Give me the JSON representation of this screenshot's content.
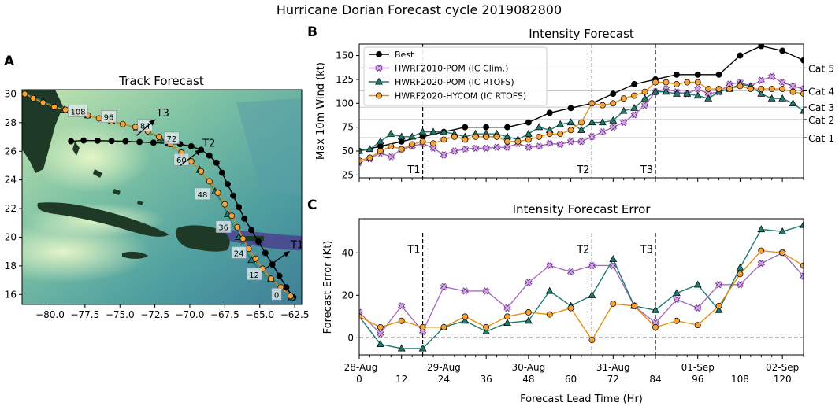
{
  "suptitle": "Hurricane Dorian Forecast cycle 2019082800",
  "panels": {
    "a": "A",
    "b": "B",
    "c": "C"
  },
  "colors": {
    "best": "#000000",
    "pom2010": "#a05ab8",
    "pom2020": "#1f7a6e",
    "hycom": "#f29e26"
  },
  "chart_data": [
    {
      "type": "scatter",
      "title": "Track Forecast",
      "xlim": [
        -82.0,
        -62.0
      ],
      "ylim": [
        15.3,
        30.3
      ],
      "xticks": [
        -80.0,
        -77.5,
        -75.0,
        -72.5,
        -70.0,
        -67.5,
        -65.0,
        -62.5
      ],
      "xtick_labels": [
        "−80.0",
        "−77.5",
        "−75.0",
        "−72.5",
        "−70.0",
        "−67.5",
        "−65.0",
        "−62.5"
      ],
      "yticks": [
        16,
        18,
        20,
        22,
        24,
        26,
        28,
        30
      ],
      "series": [
        {
          "name": "Best",
          "lon": [
            -62.6,
            -63.1,
            -63.6,
            -64.1,
            -64.6,
            -65.1,
            -65.6,
            -66.1,
            -66.5,
            -66.9,
            -67.3,
            -67.7,
            -68.1,
            -68.6,
            -69.2,
            -69.9,
            -70.7,
            -71.6,
            -72.6,
            -73.6,
            -74.6,
            -75.6,
            -76.6,
            -77.6,
            -78.5
          ],
          "lat": [
            15.8,
            16.5,
            17.3,
            18.1,
            18.9,
            19.7,
            20.5,
            21.3,
            22.1,
            22.9,
            23.7,
            24.5,
            25.2,
            25.7,
            26.1,
            26.35,
            26.5,
            26.55,
            26.6,
            26.65,
            26.7,
            26.72,
            26.74,
            26.75,
            26.7
          ]
        },
        {
          "name": "HWRF2020-POM (IC RTOFS)",
          "lon": [
            -62.7,
            -63.4,
            -64.2,
            -65.0,
            -65.6,
            -66.1,
            -66.5,
            -66.9,
            -67.3,
            -67.7,
            -68.2,
            -68.7,
            -69.3,
            -69.9,
            -70.6,
            -71.3,
            -72.1,
            -72.9,
            -73.8,
            -74.7,
            -75.6,
            -76.5,
            -77.3,
            -78.1,
            -79.0,
            -79.8,
            -80.5,
            -81.2,
            -81.9
          ],
          "lat": [
            15.8,
            16.5,
            17.1,
            17.7,
            18.4,
            19.2,
            20.0,
            20.8,
            21.6,
            22.4,
            23.2,
            24.0,
            24.7,
            25.3,
            25.9,
            26.4,
            26.9,
            27.3,
            27.6,
            27.9,
            28.1,
            28.3,
            28.5,
            28.7,
            28.9,
            29.2,
            29.5,
            29.8,
            30.1
          ]
        },
        {
          "name": "HWRF2020-HYCOM (IC RTOFS)",
          "lon": [
            -62.8,
            -63.5,
            -64.2,
            -64.8,
            -65.3,
            -65.8,
            -66.2,
            -66.6,
            -67.0,
            -67.5,
            -68.0,
            -68.6,
            -69.2,
            -69.9,
            -70.6,
            -71.4,
            -72.2,
            -73.0,
            -73.9,
            -74.8,
            -75.6,
            -76.5,
            -77.3,
            -78.1,
            -78.9,
            -79.7,
            -80.5,
            -81.2,
            -81.8
          ],
          "lat": [
            15.9,
            16.5,
            17.1,
            17.8,
            18.5,
            19.2,
            19.9,
            20.7,
            21.5,
            22.3,
            23.1,
            23.9,
            24.6,
            25.3,
            25.9,
            26.5,
            27.0,
            27.4,
            27.7,
            27.9,
            28.1,
            28.3,
            28.5,
            28.7,
            28.9,
            29.1,
            29.4,
            29.7,
            30.0
          ]
        }
      ],
      "hour_labels": [
        {
          "label": "0",
          "lon": -63.8,
          "lat": 16.0
        },
        {
          "label": "12",
          "lon": -65.4,
          "lat": 17.4
        },
        {
          "label": "24",
          "lon": -66.5,
          "lat": 18.9
        },
        {
          "label": "36",
          "lon": -67.6,
          "lat": 20.7
        },
        {
          "label": "48",
          "lon": -69.1,
          "lat": 23.0
        },
        {
          "label": "60",
          "lon": -70.6,
          "lat": 25.4
        },
        {
          "label": "72",
          "lon": -71.3,
          "lat": 26.9
        },
        {
          "label": "84",
          "lon": -73.2,
          "lat": 27.8
        },
        {
          "label": "96",
          "lon": -75.8,
          "lat": 28.4
        },
        {
          "label": "108",
          "lon": -78.0,
          "lat": 28.8
        }
      ],
      "time_markers": [
        {
          "label": "T1",
          "lon": -62.9,
          "lat": 19.0,
          "lon_from": -64.6,
          "lat_from": 17.8
        },
        {
          "label": "T2",
          "lon": -69.2,
          "lat": 26.1,
          "lon_from": -70.7,
          "lat_from": 25.0
        },
        {
          "label": "T3",
          "lon": -72.5,
          "lat": 28.2,
          "lon_from": -73.8,
          "lat_from": 27.1
        }
      ]
    },
    {
      "type": "line",
      "title": "Intensity Forecast",
      "ylabel": "Max 10m Wind (kt)",
      "xlim": [
        0,
        126
      ],
      "ylim": [
        22,
        162
      ],
      "yticks": [
        25,
        50,
        75,
        100,
        125,
        150
      ],
      "category_lines": [
        {
          "label": "Cat 1",
          "value": 64
        },
        {
          "label": "Cat 2",
          "value": 83
        },
        {
          "label": "Cat 3",
          "value": 96
        },
        {
          "label": "Cat 4",
          "value": 113
        },
        {
          "label": "Cat 5",
          "value": 137
        }
      ],
      "time_markers": [
        {
          "label": "T1",
          "x": 18
        },
        {
          "label": "T2",
          "x": 66
        },
        {
          "label": "T3",
          "x": 84
        }
      ],
      "series": [
        {
          "name": "Best",
          "x": [
            0,
            6,
            12,
            18,
            24,
            30,
            36,
            42,
            48,
            54,
            60,
            66,
            72,
            78,
            84,
            90,
            96,
            102,
            108,
            114,
            120,
            126
          ],
          "y": [
            50,
            55,
            60,
            65,
            70,
            75,
            75,
            75,
            80,
            90,
            95,
            100,
            110,
            120,
            125,
            130,
            130,
            130,
            150,
            160,
            155,
            145
          ]
        },
        {
          "name": "HWRF2010-POM (IC Clim.)",
          "x": [
            0,
            3,
            6,
            9,
            12,
            15,
            18,
            21,
            24,
            27,
            30,
            33,
            36,
            39,
            42,
            45,
            48,
            51,
            54,
            57,
            60,
            63,
            66,
            69,
            72,
            75,
            78,
            81,
            84,
            87,
            90,
            93,
            96,
            99,
            102,
            105,
            108,
            111,
            114,
            117,
            120,
            123,
            126
          ],
          "y": [
            38,
            42,
            48,
            44,
            52,
            55,
            58,
            53,
            46,
            50,
            52,
            53,
            53,
            54,
            54,
            58,
            54,
            55,
            58,
            57,
            60,
            60,
            65,
            70,
            75,
            80,
            88,
            98,
            112,
            115,
            112,
            110,
            115,
            110,
            112,
            120,
            122,
            118,
            124,
            128,
            122,
            118,
            115
          ]
        },
        {
          "name": "HWRF2020-POM (IC RTOFS)",
          "x": [
            0,
            3,
            6,
            9,
            12,
            15,
            18,
            21,
            24,
            27,
            30,
            33,
            36,
            39,
            42,
            45,
            48,
            51,
            54,
            57,
            60,
            63,
            66,
            69,
            72,
            75,
            78,
            81,
            84,
            87,
            90,
            93,
            96,
            99,
            102,
            105,
            108,
            111,
            114,
            117,
            120,
            123,
            126
          ],
          "y": [
            50,
            52,
            60,
            68,
            65,
            65,
            70,
            70,
            70,
            68,
            65,
            68,
            68,
            68,
            65,
            62,
            68,
            75,
            72,
            78,
            80,
            72,
            80,
            80,
            82,
            92,
            95,
            105,
            112,
            112,
            110,
            110,
            108,
            105,
            112,
            115,
            120,
            118,
            110,
            105,
            105,
            100,
            92
          ]
        },
        {
          "name": "HWRF2020-HYCOM (IC RTOFS)",
          "x": [
            0,
            3,
            6,
            9,
            12,
            15,
            18,
            21,
            24,
            27,
            30,
            33,
            36,
            39,
            42,
            45,
            48,
            51,
            54,
            57,
            60,
            63,
            66,
            69,
            72,
            75,
            78,
            81,
            84,
            87,
            90,
            93,
            96,
            99,
            102,
            105,
            108,
            111,
            114,
            117,
            120,
            123,
            126
          ],
          "y": [
            40,
            43,
            50,
            55,
            52,
            57,
            60,
            58,
            62,
            65,
            62,
            65,
            65,
            65,
            60,
            60,
            62,
            65,
            68,
            68,
            72,
            80,
            100,
            98,
            100,
            105,
            108,
            112,
            122,
            122,
            120,
            122,
            122,
            115,
            115,
            115,
            118,
            115,
            115,
            115,
            115,
            112,
            110
          ]
        }
      ]
    },
    {
      "type": "line",
      "title": "Intensity Forecast Error",
      "ylabel": "Forecast Error (Kt)",
      "xlabel": "Forecast Lead Time (Hr)",
      "xlim": [
        0,
        126
      ],
      "ylim": [
        -8,
        56
      ],
      "yticks": [
        0,
        20,
        40
      ],
      "xticks": [
        0,
        12,
        24,
        36,
        48,
        60,
        72,
        84,
        96,
        108,
        120
      ],
      "date_labels": [
        {
          "label": "28-Aug",
          "x": 0
        },
        {
          "label": "29-Aug",
          "x": 24
        },
        {
          "label": "30-Aug",
          "x": 48
        },
        {
          "label": "31-Aug",
          "x": 72
        },
        {
          "label": "01-Sep",
          "x": 96
        },
        {
          "label": "02-Sep",
          "x": 120
        }
      ],
      "time_markers": [
        {
          "label": "T1",
          "x": 18
        },
        {
          "label": "T2",
          "x": 66
        },
        {
          "label": "T3",
          "x": 84
        }
      ],
      "series": [
        {
          "name": "HWRF2010-POM (IC Clim.)",
          "x": [
            0,
            6,
            12,
            18,
            24,
            30,
            36,
            42,
            48,
            54,
            60,
            66,
            72,
            78,
            84,
            90,
            96,
            102,
            108,
            114,
            120,
            126
          ],
          "y": [
            12,
            2,
            15,
            3,
            24,
            22,
            22,
            14,
            26,
            34,
            31,
            34,
            34,
            15,
            7,
            18,
            14,
            25,
            25,
            35,
            40,
            29
          ]
        },
        {
          "name": "HWRF2020-POM (IC RTOFS)",
          "x": [
            0,
            6,
            12,
            18,
            24,
            30,
            36,
            42,
            48,
            54,
            60,
            66,
            72,
            78,
            84,
            90,
            96,
            102,
            108,
            114,
            120,
            126
          ],
          "y": [
            10,
            -3,
            -5,
            -5,
            5,
            8,
            3,
            7,
            8,
            22,
            15,
            20,
            37,
            15,
            13,
            21,
            25,
            13,
            33,
            51,
            50,
            53
          ]
        },
        {
          "name": "HWRF2020-HYCOM (IC RTOFS)",
          "x": [
            0,
            6,
            12,
            18,
            24,
            30,
            36,
            42,
            48,
            54,
            60,
            66,
            72,
            78,
            84,
            90,
            96,
            102,
            108,
            114,
            120,
            126
          ],
          "y": [
            10,
            5,
            8,
            5,
            5,
            10,
            5,
            10,
            12,
            11,
            14,
            -1,
            16,
            15,
            5,
            8,
            6,
            15,
            30,
            41,
            40,
            34
          ]
        }
      ]
    }
  ]
}
